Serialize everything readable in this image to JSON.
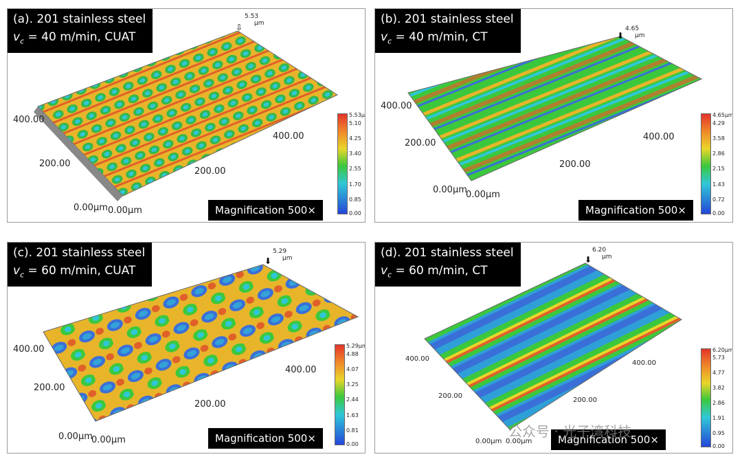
{
  "panels": [
    {
      "id": "a",
      "title_prefix": "(a). 201 stainless steel",
      "v_symbol": "v",
      "v_sub": "c",
      "condition": " = 40 m/min, CUAT",
      "peak_value": "5.53",
      "peak_unit": "μm",
      "magnification": "Magnification 500×",
      "scale_ticks": [
        "5.53μm",
        "5.10",
        "4.25",
        "3.40",
        "2.55",
        "1.70",
        "0.85",
        "0.00"
      ],
      "y_ticks": [
        "400.00",
        "200.00",
        "0.00μm"
      ],
      "x_ticks": [
        "0.00μm",
        "200.00",
        "400.00"
      ]
    },
    {
      "id": "b",
      "title_prefix": "(b). 201 stainless steel",
      "v_symbol": "v",
      "v_sub": "c",
      "condition": " = 40 m/min, CT",
      "peak_value": "4.65",
      "peak_unit": "μm",
      "magnification": "Magnification 500×",
      "scale_ticks": [
        "4.65μm",
        "4.29",
        "3.58",
        "2.86",
        "2.15",
        "1.43",
        "0.72",
        "0.00"
      ],
      "y_ticks": [
        "400.00",
        "200.00",
        "0.00μm"
      ],
      "x_ticks": [
        "0.00μm",
        "200.00",
        "400.00"
      ]
    },
    {
      "id": "c",
      "title_prefix": "(c). 201 stainless steel",
      "v_symbol": "v",
      "v_sub": "c",
      "condition": " = 60 m/min, CUAT",
      "peak_value": "5.29",
      "peak_unit": "μm",
      "magnification": "Magnification 500×",
      "scale_ticks": [
        "5.29μm",
        "4.88",
        "4.07",
        "3.25",
        "2.44",
        "1.63",
        "0.81",
        "0.00"
      ],
      "y_ticks": [
        "400.00",
        "200.00",
        "0.00μm"
      ],
      "x_ticks": [
        "0.00μm",
        "200.00",
        "400.00"
      ]
    },
    {
      "id": "d",
      "title_prefix": "(d). 201 stainless steel",
      "v_symbol": "v",
      "v_sub": "c",
      "condition": " = 60 m/min, CT",
      "peak_value": "6.20",
      "peak_unit": "μm",
      "magnification": "Magnification 500×",
      "scale_ticks": [
        "6.20μm",
        "5.73",
        "4.77",
        "3.82",
        "2.86",
        "1.91",
        "0.95",
        "0.00"
      ],
      "y_ticks": [
        "400.00",
        "200.00",
        "0.00μm"
      ],
      "x_ticks": [
        "0.00μm",
        "200.00",
        "400.00"
      ]
    }
  ],
  "watermark": "公众号 · 光子湾科技",
  "colors": {
    "surface_blue": "#3a6fd8",
    "surface_cyan": "#2fc7d8",
    "surface_green": "#3cc83c",
    "surface_yellow": "#e8d62a",
    "surface_orange": "#ef8a2a",
    "surface_red": "#e0402a"
  }
}
